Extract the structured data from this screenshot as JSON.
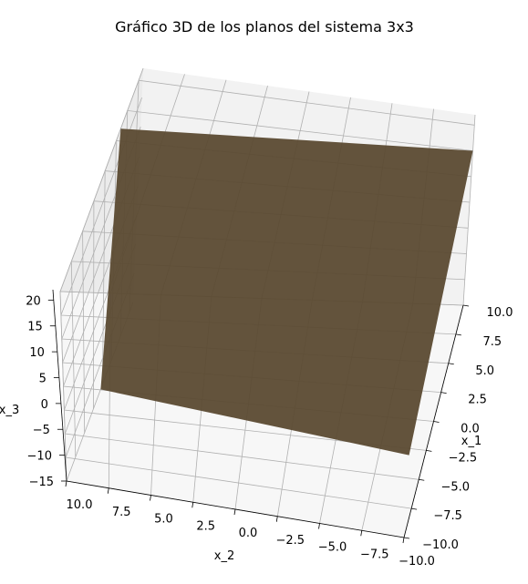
{
  "chart_data": {
    "type": "surface3d",
    "title": "Gráfico 3D de los planos del sistema 3x3",
    "axes": {
      "x": {
        "label": "x_1",
        "range": [
          -10,
          10
        ],
        "ticks": [
          -10,
          -7.5,
          -5,
          -2.5,
          0,
          2.5,
          5,
          7.5,
          10
        ],
        "tick_labels": [
          "−10.0",
          "−7.5",
          "−5.0",
          "−2.5",
          "0.0",
          "2.5",
          "5.0",
          "7.5",
          "10.0"
        ]
      },
      "y": {
        "label": "x_2",
        "range": [
          -10,
          10
        ],
        "ticks": [
          10,
          7.5,
          5,
          2.5,
          0,
          -2.5,
          -5,
          -7.5,
          -10
        ],
        "tick_labels": [
          "10.0",
          "7.5",
          "5.0",
          "2.5",
          "0.0",
          "−2.5",
          "−5.0",
          "−7.5",
          "−10.0"
        ]
      },
      "z": {
        "label": "x_3",
        "range": [
          -15,
          22
        ],
        "ticks": [
          -15,
          -10,
          -5,
          0,
          5,
          10,
          15,
          20
        ],
        "tick_labels": [
          "−15",
          "−10",
          "−5",
          "0",
          "5",
          "10",
          "15",
          "20"
        ]
      }
    },
    "grid": true,
    "surfaces": [
      {
        "color": "#5b4a31",
        "opacity": 0.95,
        "corners": [
          {
            "x": -10,
            "y": 10,
            "z": 4
          },
          {
            "x": 10,
            "y": 10,
            "z": 12
          },
          {
            "x": 10,
            "y": -10,
            "z": 15
          },
          {
            "x": -10,
            "y": -10,
            "z": 5
          }
        ]
      }
    ],
    "pane_colors": {
      "left": "#f2f2f2",
      "right": "#ebebeb",
      "floor": "#f7f7f7"
    }
  }
}
